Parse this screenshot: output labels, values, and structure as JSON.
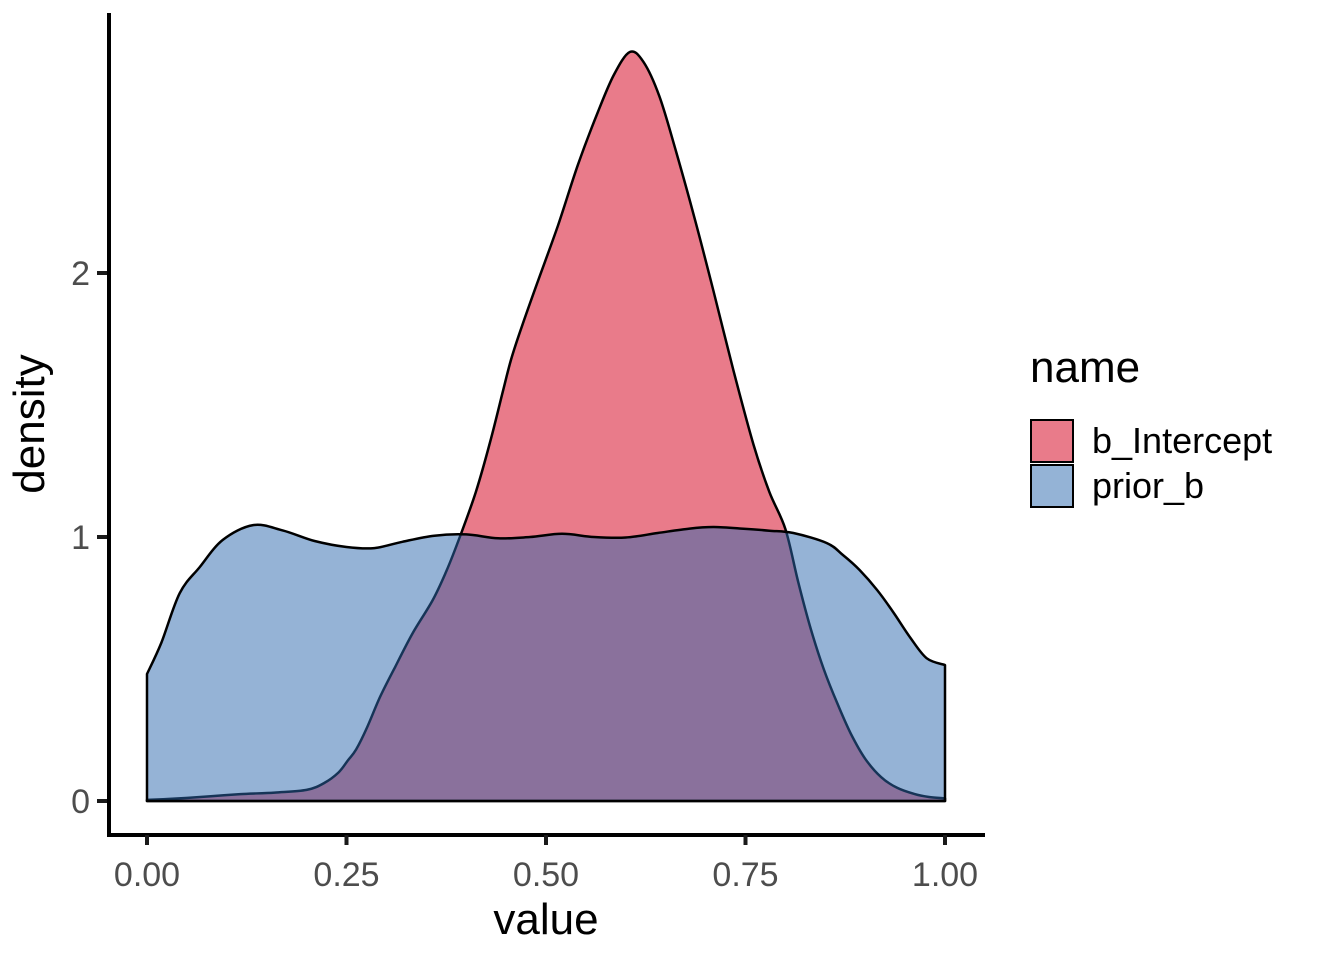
{
  "chart_data": {
    "type": "area",
    "title": "",
    "xlabel": "value",
    "ylabel": "density",
    "xlim": [
      0,
      1
    ],
    "ylim": [
      0,
      2.98
    ],
    "grid": "off",
    "panel_background": "#FFFFFF",
    "axis_color": "#000000",
    "tick_label_color": "#4D4D4D",
    "overlap_render_color": "#8A719B",
    "x_ticks": [
      {
        "v": 0.0,
        "label": "0.00"
      },
      {
        "v": 0.25,
        "label": "0.25"
      },
      {
        "v": 0.5,
        "label": "0.50"
      },
      {
        "v": 0.75,
        "label": "0.75"
      },
      {
        "v": 1.0,
        "label": "1.00"
      }
    ],
    "y_ticks": [
      {
        "v": 0,
        "label": "0"
      },
      {
        "v": 1,
        "label": "1"
      },
      {
        "v": 2,
        "label": "2"
      }
    ],
    "legend": {
      "title": "name",
      "position": "right",
      "entries": [
        {
          "label": "b_Intercept",
          "swatch": "#E97B8A"
        },
        {
          "label": "prior_b",
          "swatch": "#94B3D6"
        }
      ]
    },
    "series": [
      {
        "name": "b_Intercept",
        "kind": "density",
        "fill": "#E97B8A",
        "stroke": "#000000",
        "stroke_width": 2.5,
        "peak": {
          "x": 0.605,
          "y": 2.84
        },
        "points": [
          [
            0.0,
            0.004
          ],
          [
            0.04,
            0.01
          ],
          [
            0.08,
            0.018
          ],
          [
            0.117,
            0.026
          ],
          [
            0.16,
            0.032
          ],
          [
            0.2,
            0.042
          ],
          [
            0.222,
            0.068
          ],
          [
            0.24,
            0.108
          ],
          [
            0.252,
            0.155
          ],
          [
            0.262,
            0.195
          ],
          [
            0.276,
            0.28
          ],
          [
            0.292,
            0.394
          ],
          [
            0.311,
            0.508
          ],
          [
            0.333,
            0.636
          ],
          [
            0.358,
            0.761
          ],
          [
            0.375,
            0.87
          ],
          [
            0.392,
            1.0
          ],
          [
            0.412,
            1.17
          ],
          [
            0.43,
            1.36
          ],
          [
            0.445,
            1.54
          ],
          [
            0.456,
            1.67
          ],
          [
            0.47,
            1.8
          ],
          [
            0.49,
            1.97
          ],
          [
            0.515,
            2.18
          ],
          [
            0.54,
            2.41
          ],
          [
            0.565,
            2.61
          ],
          [
            0.585,
            2.75
          ],
          [
            0.605,
            2.837
          ],
          [
            0.622,
            2.8
          ],
          [
            0.642,
            2.67
          ],
          [
            0.663,
            2.46
          ],
          [
            0.686,
            2.21
          ],
          [
            0.71,
            1.93
          ],
          [
            0.735,
            1.63
          ],
          [
            0.76,
            1.35
          ],
          [
            0.78,
            1.17
          ],
          [
            0.8,
            1.03
          ],
          [
            0.816,
            0.83
          ],
          [
            0.832,
            0.65
          ],
          [
            0.848,
            0.5
          ],
          [
            0.865,
            0.37
          ],
          [
            0.882,
            0.255
          ],
          [
            0.9,
            0.16
          ],
          [
            0.92,
            0.09
          ],
          [
            0.94,
            0.05
          ],
          [
            0.962,
            0.026
          ],
          [
            0.98,
            0.015
          ],
          [
            1.0,
            0.01
          ]
        ]
      },
      {
        "name": "prior_b",
        "kind": "density",
        "fill": "rgba(44,103,173,0.5)",
        "stroke": "#000000",
        "stroke_width": 2.5,
        "points": [
          [
            0.0,
            0.481
          ],
          [
            0.018,
            0.6
          ],
          [
            0.041,
            0.787
          ],
          [
            0.066,
            0.886
          ],
          [
            0.095,
            0.989
          ],
          [
            0.133,
            1.045
          ],
          [
            0.17,
            1.025
          ],
          [
            0.21,
            0.985
          ],
          [
            0.25,
            0.962
          ],
          [
            0.285,
            0.958
          ],
          [
            0.32,
            0.982
          ],
          [
            0.36,
            1.005
          ],
          [
            0.4,
            1.01
          ],
          [
            0.44,
            0.995
          ],
          [
            0.48,
            1.0
          ],
          [
            0.52,
            1.012
          ],
          [
            0.56,
            1.0
          ],
          [
            0.6,
            0.998
          ],
          [
            0.64,
            1.015
          ],
          [
            0.68,
            1.032
          ],
          [
            0.71,
            1.038
          ],
          [
            0.745,
            1.032
          ],
          [
            0.78,
            1.024
          ],
          [
            0.81,
            1.015
          ],
          [
            0.852,
            0.977
          ],
          [
            0.872,
            0.932
          ],
          [
            0.893,
            0.875
          ],
          [
            0.915,
            0.799
          ],
          [
            0.935,
            0.716
          ],
          [
            0.956,
            0.621
          ],
          [
            0.977,
            0.541
          ],
          [
            1.0,
            0.515
          ]
        ]
      }
    ]
  }
}
